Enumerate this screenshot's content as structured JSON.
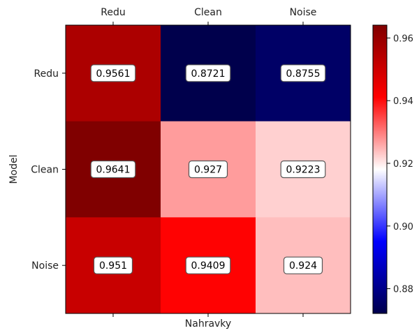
{
  "chart_data": {
    "type": "heatmap",
    "xlabel": "Nahravky",
    "ylabel": "Model",
    "x_categories": [
      "Redu",
      "Clean",
      "Noise"
    ],
    "y_categories": [
      "Redu",
      "Clean",
      "Noise"
    ],
    "x_tick_position": "top",
    "values": [
      [
        0.9561,
        0.8721,
        0.8755
      ],
      [
        0.9641,
        0.927,
        0.9223
      ],
      [
        0.951,
        0.9409,
        0.924
      ]
    ],
    "value_labels": [
      [
        "0.9561",
        "0.8721",
        "0.8755"
      ],
      [
        "0.9641",
        "0.927",
        "0.9223"
      ],
      [
        "0.951",
        "0.9409",
        "0.924"
      ]
    ],
    "colormap": "seismic",
    "colorbar": {
      "range": [
        0.8721,
        0.9641
      ],
      "ticks": [
        0.88,
        0.9,
        0.92,
        0.94,
        0.96
      ],
      "tick_labels": [
        "0.88",
        "0.90",
        "0.92",
        "0.94",
        "0.96"
      ]
    },
    "grid": false
  }
}
